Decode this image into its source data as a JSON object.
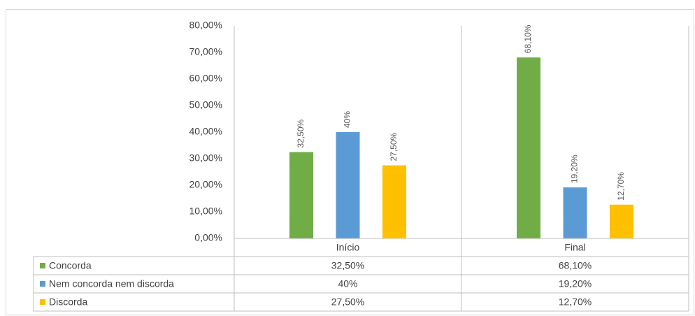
{
  "chart_data": {
    "type": "bar",
    "categories": [
      "Início",
      "Final"
    ],
    "series": [
      {
        "name": "Concorda",
        "color": "#70ad47",
        "values": [
          32.5,
          68.1
        ],
        "value_labels": [
          "32,50%",
          "68,10%"
        ]
      },
      {
        "name": "Nem concorda nem discorda",
        "color": "#5b9bd5",
        "values": [
          40,
          19.2
        ],
        "value_labels": [
          "40%",
          "19,20%"
        ]
      },
      {
        "name": "Discorda",
        "color": "#ffc000",
        "values": [
          27.5,
          12.7
        ],
        "value_labels": [
          "27,50%",
          "12,70%"
        ]
      }
    ],
    "ylim": [
      0,
      80
    ],
    "yticks": [
      {
        "value": 0,
        "label": "0,00%"
      },
      {
        "value": 10,
        "label": "10,00%"
      },
      {
        "value": 20,
        "label": "20,00%"
      },
      {
        "value": 30,
        "label": "30,00%"
      },
      {
        "value": 40,
        "label": "40,00%"
      },
      {
        "value": 50,
        "label": "50,00%"
      },
      {
        "value": 60,
        "label": "60,00%"
      },
      {
        "value": 70,
        "label": "70,00%"
      },
      {
        "value": 80,
        "label": "80,00%"
      }
    ],
    "grid": false
  }
}
